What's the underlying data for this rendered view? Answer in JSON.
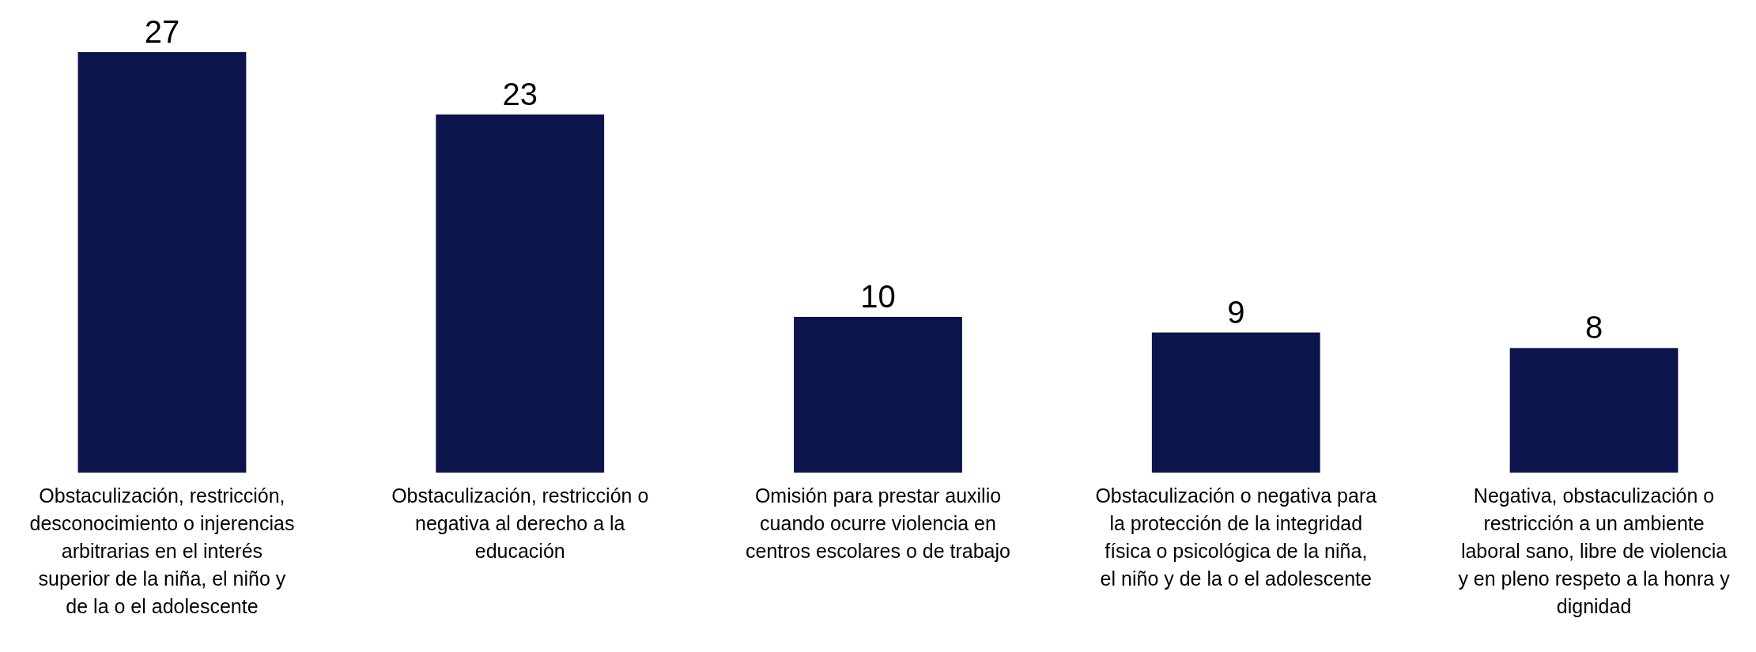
{
  "chart_data": {
    "type": "bar",
    "categories": [
      "Obstaculización, restricción, desconocimiento o injerencias arbitrarias en el interés superior de la niña, el niño y de la o el adolescente",
      "Obstaculización, restricción o negativa al derecho a la educación",
      "Omisión para prestar auxilio cuando ocurre violencia en centros escolares o de trabajo",
      "Obstaculización o negativa para la protección de la integridad física o psicológica de la niña, el niño y de la o el adolescente",
      "Negativa, obstaculización o restricción a un ambiente laboral sano, libre de violencia y en pleno respeto a la honra y dignidad"
    ],
    "values": [
      27,
      23,
      10,
      9,
      8
    ],
    "color": "#0c144c",
    "data_labels": true
  }
}
